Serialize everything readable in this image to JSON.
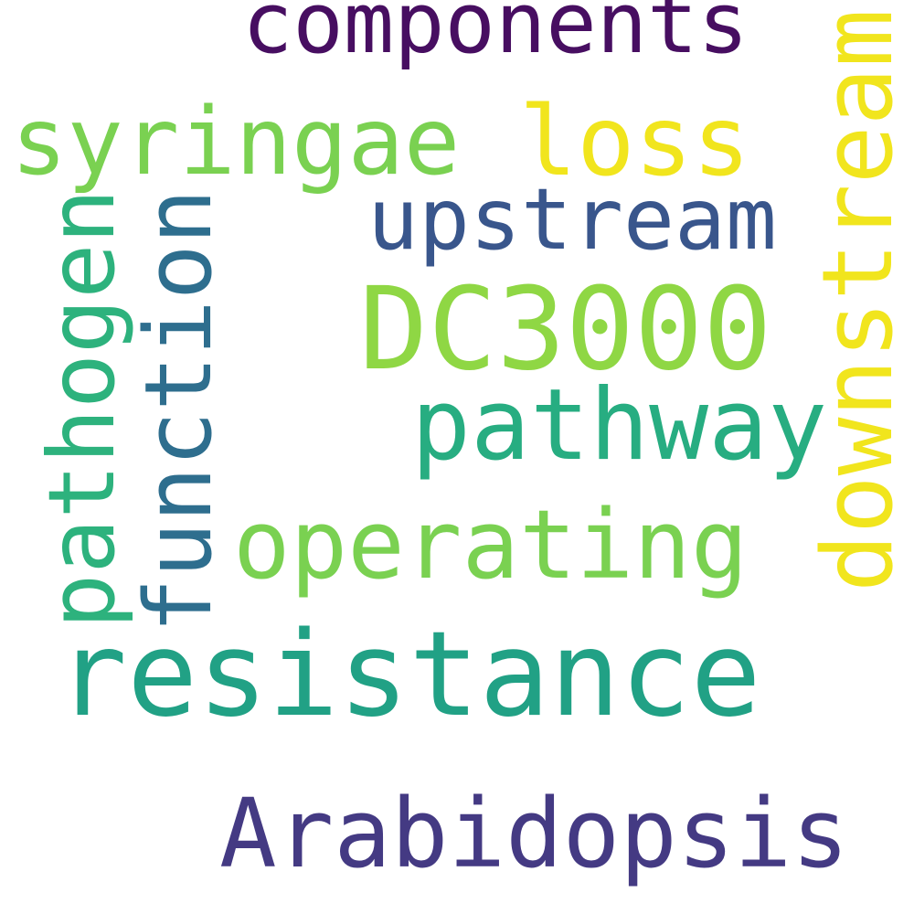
{
  "wordcloud": {
    "background": "#ffffff",
    "words": {
      "resistance": {
        "text": "resistance",
        "color": "#21a185",
        "orientation": "horizontal"
      },
      "arabidopsis": {
        "text": "Arabidopsis",
        "color": "#443a83",
        "orientation": "horizontal"
      },
      "components": {
        "text": "components",
        "color": "#470e61",
        "orientation": "horizontal"
      },
      "syringae": {
        "text": "syringae",
        "color": "#7ad151",
        "orientation": "horizontal"
      },
      "loss": {
        "text": "loss",
        "color": "#f1e51d",
        "orientation": "horizontal"
      },
      "upstream": {
        "text": "upstream",
        "color": "#39568c",
        "orientation": "horizontal"
      },
      "dc3000": {
        "text": "DC3000",
        "color": "#8fd744",
        "orientation": "horizontal"
      },
      "pathway": {
        "text": "pathway",
        "color": "#27ad81",
        "orientation": "horizontal"
      },
      "operating": {
        "text": "operating",
        "color": "#7ad151",
        "orientation": "horizontal"
      },
      "downstream": {
        "text": "downstream",
        "color": "#f1e51d",
        "orientation": "vertical"
      },
      "function": {
        "text": "function",
        "color": "#2e6e8e",
        "orientation": "vertical"
      },
      "pathogen": {
        "text": "pathogen",
        "color": "#2db27d",
        "orientation": "vertical"
      }
    }
  }
}
